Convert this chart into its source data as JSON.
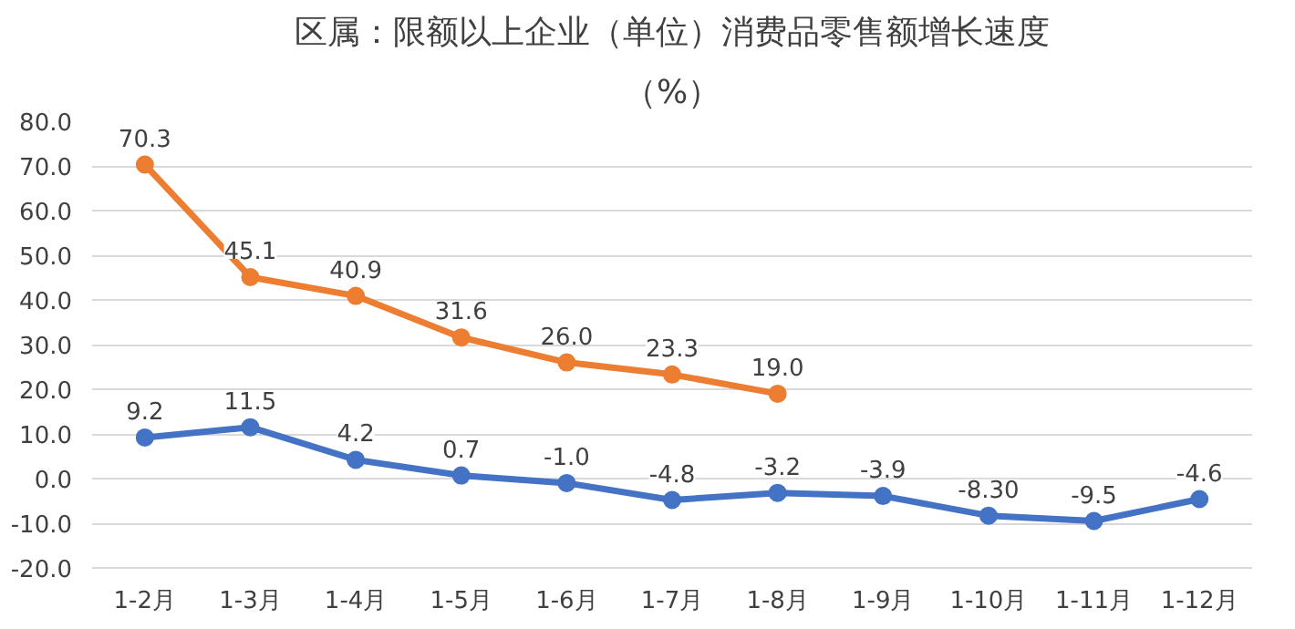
{
  "chart_data": {
    "type": "line",
    "title": "区属：限额以上企业（单位）消费品零售额增长速度",
    "subtitle": "（%）",
    "categories": [
      "1-2月",
      "1-3月",
      "1-4月",
      "1-5月",
      "1-6月",
      "1-7月",
      "1-8月",
      "1-9月",
      "1-10月",
      "1-11月",
      "1-12月"
    ],
    "series": [
      {
        "color": "#ed7d31",
        "values": [
          70.3,
          45.1,
          40.9,
          31.6,
          26.0,
          23.3,
          19.0,
          null,
          null,
          null,
          null
        ],
        "value_labels": [
          "70.3",
          "45.1",
          "40.9",
          "31.6",
          "26.0",
          "23.3",
          "19.0",
          null,
          null,
          null,
          null
        ]
      },
      {
        "color": "#4472c4",
        "values": [
          9.2,
          11.5,
          4.2,
          0.7,
          -1.0,
          -4.8,
          -3.2,
          -3.9,
          -8.3,
          -9.5,
          -4.6
        ],
        "value_labels": [
          "9.2",
          "11.5",
          "4.2",
          "0.7",
          "-1.0",
          "-4.8",
          "-3.2",
          "-3.9",
          "-8.30",
          "-9.5",
          "-4.6"
        ]
      }
    ],
    "ylim": [
      -20,
      80
    ],
    "yticks": [
      {
        "value": -20,
        "label": "-20.0"
      },
      {
        "value": -10,
        "label": "-10.0"
      },
      {
        "value": 0,
        "label": "0.0"
      },
      {
        "value": 10,
        "label": "10.0"
      },
      {
        "value": 20,
        "label": "20.0"
      },
      {
        "value": 30,
        "label": "30.0"
      },
      {
        "value": 40,
        "label": "40.0"
      },
      {
        "value": 50,
        "label": "50.0"
      },
      {
        "value": 60,
        "label": "60.0"
      },
      {
        "value": 70,
        "label": "70.0"
      },
      {
        "value": 80,
        "label": "80.0"
      }
    ],
    "grid": "y",
    "marker": "circle",
    "line_style": "solid"
  }
}
